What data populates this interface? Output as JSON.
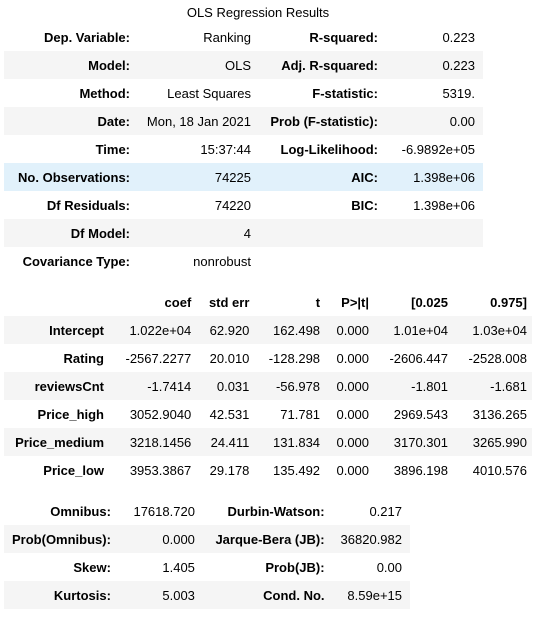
{
  "title": "OLS Regression Results",
  "summary": [
    [
      "Dep. Variable:",
      "Ranking",
      "R-squared:",
      "0.223"
    ],
    [
      "Model:",
      "OLS",
      "Adj. R-squared:",
      "0.223"
    ],
    [
      "Method:",
      "Least Squares",
      "F-statistic:",
      "5319."
    ],
    [
      "Date:",
      "Mon, 18 Jan 2021",
      "Prob (F-statistic):",
      "0.00"
    ],
    [
      "Time:",
      "15:37:44",
      "Log-Likelihood:",
      "-6.9892e+05"
    ],
    [
      "No. Observations:",
      "74225",
      "AIC:",
      "1.398e+06"
    ],
    [
      "Df Residuals:",
      "74220",
      "BIC:",
      "1.398e+06"
    ],
    [
      "Df Model:",
      "4",
      "",
      ""
    ],
    [
      "Covariance Type:",
      "nonrobust",
      "",
      ""
    ]
  ],
  "coef_header": [
    "",
    "coef",
    "std err",
    "t",
    "P>|t|",
    "[0.025",
    "0.975]"
  ],
  "coef_rows": [
    [
      "Intercept",
      "1.022e+04",
      "62.920",
      "162.498",
      "0.000",
      "1.01e+04",
      "1.03e+04"
    ],
    [
      "Rating",
      "-2567.2277",
      "20.010",
      "-128.298",
      "0.000",
      "-2606.447",
      "-2528.008"
    ],
    [
      "reviewsCnt",
      "-1.7414",
      "0.031",
      "-56.978",
      "0.000",
      "-1.801",
      "-1.681"
    ],
    [
      "Price_high",
      "3052.9040",
      "42.531",
      "71.781",
      "0.000",
      "2969.543",
      "3136.265"
    ],
    [
      "Price_medium",
      "3218.1456",
      "24.411",
      "131.834",
      "0.000",
      "3170.301",
      "3265.990"
    ],
    [
      "Price_low",
      "3953.3867",
      "29.178",
      "135.492",
      "0.000",
      "3896.198",
      "4010.576"
    ]
  ],
  "diagnostics": [
    [
      "Omnibus:",
      "17618.720",
      "Durbin-Watson:",
      "0.217"
    ],
    [
      "Prob(Omnibus):",
      "0.000",
      "Jarque-Bera (JB):",
      "36820.982"
    ],
    [
      "Skew:",
      "1.405",
      "Prob(JB):",
      "0.00"
    ],
    [
      "Kurtosis:",
      "5.003",
      "Cond. No.",
      "8.59e+15"
    ]
  ],
  "colors": {
    "stripe": "#f5f5f5",
    "hover_row": "#e1f1fb"
  }
}
